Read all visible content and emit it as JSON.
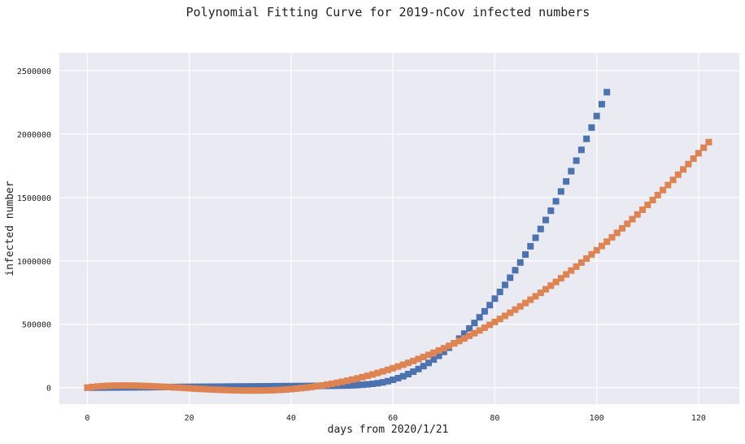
{
  "chart_data": {
    "type": "scatter",
    "title": "Polynomial Fitting Curve for 2019-nCov infected numbers",
    "xlabel": "days from 2020/1/21",
    "ylabel": "infected number",
    "xlim": [
      -5.5,
      128
    ],
    "ylim": [
      -130000,
      2640000
    ],
    "x_ticks": [
      0,
      20,
      40,
      60,
      80,
      100,
      120
    ],
    "y_ticks": [
      0,
      500000,
      1000000,
      1500000,
      2000000,
      2500000
    ],
    "grid": true,
    "legend": "none",
    "background_color": "#EAEAF2",
    "marker": "square",
    "series": [
      {
        "color": "#4C72B0",
        "x": [
          0,
          1,
          2,
          3,
          4,
          5,
          6,
          7,
          8,
          9,
          10,
          11,
          12,
          13,
          14,
          15,
          16,
          17,
          18,
          19,
          20,
          21,
          22,
          23,
          24,
          25,
          26,
          27,
          28,
          29,
          30,
          31,
          32,
          33,
          34,
          35,
          36,
          37,
          38,
          39,
          40,
          41,
          42,
          43,
          44,
          45,
          46,
          47,
          48,
          49,
          50,
          51,
          52,
          53,
          54,
          55,
          56,
          57,
          58,
          59,
          60,
          61,
          62,
          63,
          64,
          65,
          66,
          67,
          68,
          69,
          70,
          71,
          72,
          73,
          74,
          75,
          76,
          77,
          78,
          79,
          80,
          81,
          82,
          83,
          84,
          85,
          86,
          87,
          88,
          89,
          90,
          91,
          92,
          93,
          94,
          95,
          96,
          97,
          98,
          99,
          100,
          101,
          102
        ],
        "y": [
          300,
          400,
          500,
          700,
          900,
          1100,
          1400,
          1700,
          2000,
          2300,
          2600,
          3000,
          3400,
          3800,
          4200,
          4600,
          5000,
          5400,
          5800,
          6200,
          6500,
          6800,
          7100,
          7400,
          7700,
          8000,
          8300,
          8600,
          8900,
          9200,
          9500,
          9800,
          10100,
          10400,
          10700,
          11000,
          11300,
          11600,
          11900,
          12200,
          12500,
          12800,
          13100,
          13400,
          13700,
          14000,
          14300,
          14600,
          15000,
          15500,
          16000,
          17000,
          18500,
          20500,
          23000,
          26000,
          30000,
          35000,
          42000,
          51000,
          62000,
          75000,
          90000,
          107000,
          126000,
          147000,
          170000,
          195000,
          222000,
          251000,
          282000,
          315000,
          350000,
          387000,
          426000,
          467000,
          510000,
          555000,
          602000,
          651000,
          702000,
          755000,
          810000,
          867000,
          926000,
          987000,
          1050000,
          1115000,
          1182000,
          1251000,
          1322000,
          1395000,
          1470000,
          1547000,
          1626000,
          1707000,
          1790000,
          1875000,
          1962000,
          2051000,
          2142000,
          2235000,
          2330000
        ]
      },
      {
        "color": "#DD8452",
        "x": [
          0,
          1,
          2,
          3,
          4,
          5,
          6,
          7,
          8,
          9,
          10,
          11,
          12,
          13,
          14,
          15,
          16,
          17,
          18,
          19,
          20,
          21,
          22,
          23,
          24,
          25,
          26,
          27,
          28,
          29,
          30,
          31,
          32,
          33,
          34,
          35,
          36,
          37,
          38,
          39,
          40,
          41,
          42,
          43,
          44,
          45,
          46,
          47,
          48,
          49,
          50,
          51,
          52,
          53,
          54,
          55,
          56,
          57,
          58,
          59,
          60,
          61,
          62,
          63,
          64,
          65,
          66,
          67,
          68,
          69,
          70,
          71,
          72,
          73,
          74,
          75,
          76,
          77,
          78,
          79,
          80,
          81,
          82,
          83,
          84,
          85,
          86,
          87,
          88,
          89,
          90,
          91,
          92,
          93,
          94,
          95,
          96,
          97,
          98,
          99,
          100,
          101,
          102,
          103,
          104,
          105,
          106,
          107,
          108,
          109,
          110,
          111,
          112,
          113,
          114,
          115,
          116,
          117,
          118,
          119,
          120,
          121,
          122
        ],
        "y": [
          500,
          5500,
          9500,
          12500,
          14500,
          15800,
          16500,
          16700,
          16500,
          15900,
          15000,
          13800,
          12400,
          10700,
          8900,
          6900,
          4800,
          2500,
          200,
          -2200,
          -4600,
          -7000,
          -9300,
          -11500,
          -13600,
          -15500,
          -17200,
          -18700,
          -20000,
          -21000,
          -21800,
          -22300,
          -22500,
          -22500,
          -22200,
          -21500,
          -20500,
          -19000,
          -17000,
          -14500,
          -11500,
          -8000,
          -4000,
          500,
          5500,
          11000,
          17000,
          23500,
          30500,
          38000,
          46000,
          54500,
          63500,
          73000,
          83000,
          93500,
          104500,
          116000,
          128000,
          140500,
          153500,
          167000,
          181000,
          195500,
          210500,
          226000,
          242000,
          258500,
          275500,
          293000,
          311000,
          329500,
          348500,
          368000,
          388000,
          408500,
          429500,
          451000,
          473000,
          495500,
          518500,
          542000,
          566000,
          590500,
          615500,
          641000,
          667000,
          693500,
          720500,
          748000,
          776000,
          804500,
          833500,
          863000,
          893000,
          923500,
          954500,
          986000,
          1018000,
          1050500,
          1083500,
          1117000,
          1151000,
          1185500,
          1220500,
          1256000,
          1292000,
          1328500,
          1365500,
          1403000,
          1441000,
          1479500,
          1518500,
          1558000,
          1598000,
          1638500,
          1679500,
          1721000,
          1763000,
          1805500,
          1848500,
          1892000,
          1936000
        ]
      }
    ]
  }
}
